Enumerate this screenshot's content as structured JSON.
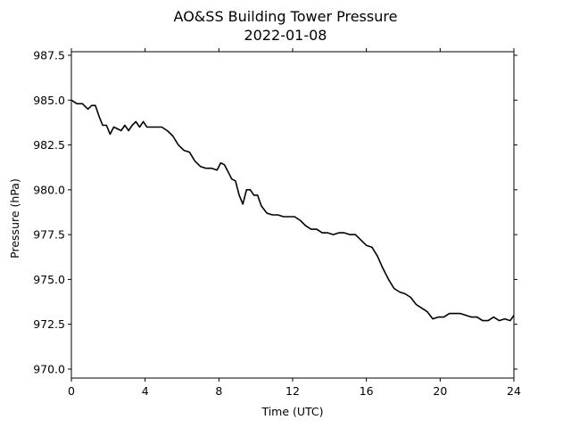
{
  "chart_data": {
    "type": "line",
    "title": "AO&SS Building Tower Pressure",
    "subtitle": "2022-01-08",
    "xlabel": "Time (UTC)",
    "ylabel": "Pressure (hPa)",
    "xlim": [
      0,
      24
    ],
    "ylim": [
      969.5,
      987.7
    ],
    "xticks": [
      0,
      4,
      8,
      12,
      16,
      20,
      24
    ],
    "yticks": [
      970.0,
      972.5,
      975.0,
      977.5,
      980.0,
      982.5,
      985.0,
      987.5
    ],
    "grid": false,
    "line_color": "#000000",
    "series": [
      {
        "x": [
          0.0,
          0.3,
          0.6,
          0.9,
          1.1,
          1.3,
          1.5,
          1.7,
          1.9,
          2.1,
          2.3,
          2.5,
          2.7,
          2.9,
          3.1,
          3.3,
          3.5,
          3.7,
          3.9,
          4.1,
          4.3,
          4.6,
          4.9,
          5.2,
          5.5,
          5.8,
          6.1,
          6.4,
          6.7,
          7.0,
          7.3,
          7.6,
          7.9,
          8.1,
          8.3,
          8.5,
          8.7,
          8.9,
          9.1,
          9.3,
          9.5,
          9.7,
          9.9,
          10.1,
          10.3,
          10.6,
          10.9,
          11.2,
          11.5,
          11.8,
          12.1,
          12.4,
          12.7,
          13.0,
          13.3,
          13.6,
          13.9,
          14.2,
          14.5,
          14.8,
          15.1,
          15.4,
          15.7,
          16.0,
          16.3,
          16.6,
          16.9,
          17.2,
          17.5,
          17.8,
          18.1,
          18.4,
          18.7,
          19.0,
          19.3,
          19.6,
          19.9,
          20.2,
          20.5,
          20.8,
          21.1,
          21.4,
          21.7,
          22.0,
          22.3,
          22.6,
          22.9,
          23.2,
          23.5,
          23.8,
          24.0
        ],
        "y": [
          985.0,
          984.8,
          984.8,
          984.5,
          984.7,
          984.7,
          984.1,
          983.6,
          983.6,
          983.1,
          983.5,
          983.4,
          983.3,
          983.6,
          983.3,
          983.6,
          983.8,
          983.5,
          983.8,
          983.5,
          983.5,
          983.5,
          983.5,
          983.3,
          983.0,
          982.5,
          982.2,
          982.1,
          981.6,
          981.3,
          981.2,
          981.2,
          981.1,
          981.5,
          981.4,
          981.0,
          980.6,
          980.5,
          979.7,
          979.2,
          980.0,
          980.0,
          979.7,
          979.7,
          979.1,
          978.7,
          978.6,
          978.6,
          978.5,
          978.5,
          978.5,
          978.3,
          978.0,
          977.8,
          977.8,
          977.6,
          977.6,
          977.5,
          977.6,
          977.6,
          977.5,
          977.5,
          977.2,
          976.9,
          976.8,
          976.3,
          975.6,
          975.0,
          974.5,
          974.3,
          974.2,
          974.0,
          973.6,
          973.4,
          973.2,
          972.8,
          972.9,
          972.9,
          973.1,
          973.1,
          973.1,
          973.0,
          972.9,
          972.9,
          972.7,
          972.7,
          972.9,
          972.7,
          972.8,
          972.7,
          973.0
        ]
      }
    ]
  }
}
